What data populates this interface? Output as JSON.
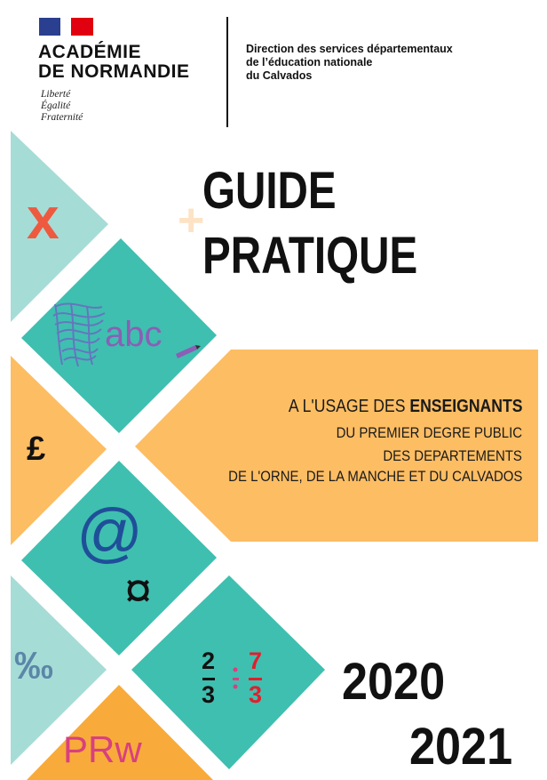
{
  "header": {
    "logo": {
      "flag_colors": [
        "#2a3f8f",
        "#ffffff",
        "#e1000f"
      ],
      "name_line1": "ACADÉMIE",
      "name_line2": "DE NORMANDIE",
      "motto": [
        "Liberté",
        "Égalité",
        "Fraternité"
      ]
    },
    "service": [
      "Direction des services départementaux",
      "de l’éducation nationale",
      "du Calvados"
    ]
  },
  "title": {
    "line1": "GUIDE",
    "line2": "PRATIQUE",
    "plus": "+"
  },
  "banner": {
    "line1_regular": "A L'USAGE DES ",
    "line1_bold": "ENSEIGNANTS",
    "line2": "DU PREMIER DEGRE PUBLIC",
    "line3": "DES DEPARTEMENTS",
    "line4": "DE L'ORNE, DE LA MANCHE ET DU CALVADOS"
  },
  "years": {
    "start": "2020",
    "end": "2021"
  },
  "symbols": {
    "times": "x",
    "abc": "abc",
    "pound": "£",
    "at": "@",
    "currency": "¤",
    "permille": "‰",
    "fraction_left_num": "2",
    "fraction_left_den": "3",
    "divide": "÷",
    "fraction_right_num": "7",
    "fraction_right_den": "3",
    "prw": "PRw"
  },
  "colors": {
    "teal": "#3fbfb0",
    "light_teal": "#a6dcd6",
    "orange": "#fdbd63",
    "deep_orange": "#f8ab3a",
    "red": "#ee5a3f",
    "purple": "#8a5fb5",
    "blue": "#1f4f99",
    "magenta": "#d8407f"
  }
}
